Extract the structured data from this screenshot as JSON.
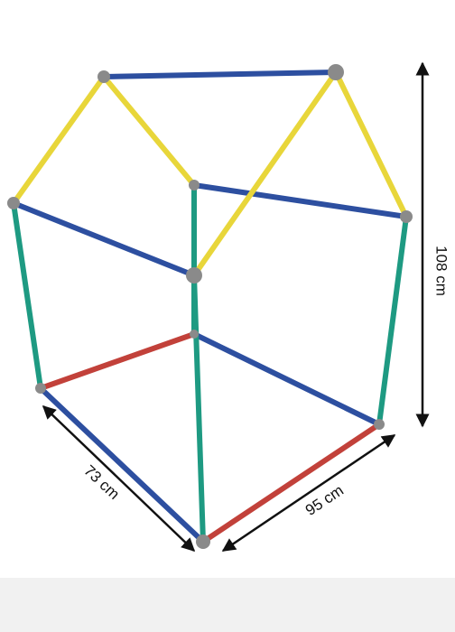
{
  "dimensions": {
    "depth": "73 cm",
    "width": "95 cm",
    "height": "108 cm"
  }
}
